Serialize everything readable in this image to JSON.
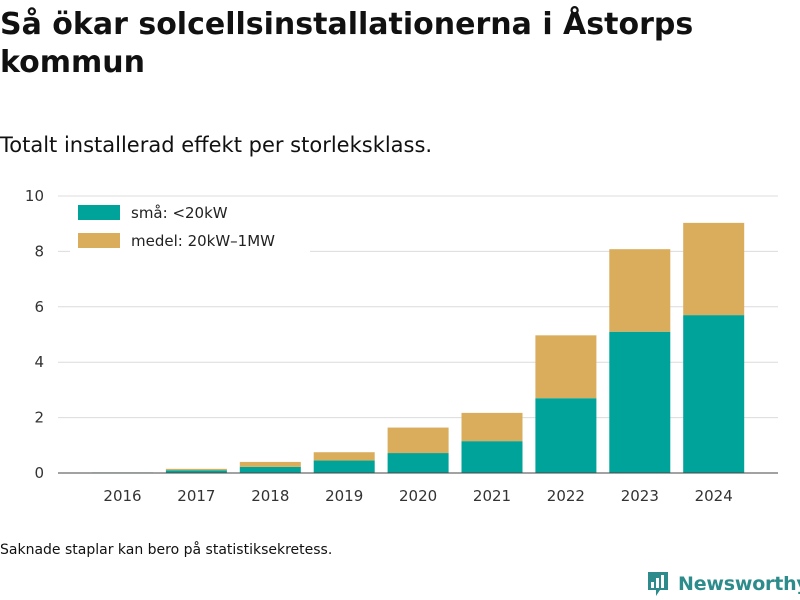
{
  "title": "Så ökar solcellsinstallationerna i Åstorps kommun",
  "subtitle": "Totalt installerad effekt per storleksklass.",
  "footnote": "Saknade staplar kan bero på statistiksekretess.",
  "brand": {
    "name": "Newsworthy",
    "logo_icon": "bar-chart-speech-bubble-icon",
    "color": "#2e8b8b"
  },
  "chart_data": {
    "type": "bar",
    "stacked": true,
    "categories": [
      "2016",
      "2017",
      "2018",
      "2019",
      "2020",
      "2021",
      "2022",
      "2023",
      "2024"
    ],
    "series": [
      {
        "name": "små: <20kW",
        "color": "#00a39a",
        "values": [
          0.02,
          0.1,
          0.22,
          0.45,
          0.72,
          1.15,
          2.7,
          5.1,
          5.7
        ]
      },
      {
        "name": "medel: 20kW–1MW",
        "color": "#d9ad5b",
        "values": [
          0,
          0.05,
          0.18,
          0.3,
          0.92,
          1.02,
          2.27,
          2.98,
          3.33
        ]
      }
    ],
    "ylim": [
      0,
      10
    ],
    "yticks": [
      0,
      2,
      4,
      6,
      8,
      10
    ],
    "grid": true,
    "legend_position": "top-left"
  }
}
